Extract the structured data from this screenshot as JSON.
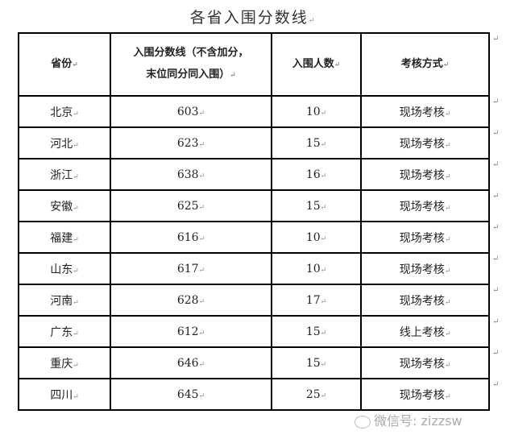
{
  "title": "各省入围分数线",
  "paragraph_mark": "↵",
  "headers": [
    "省份",
    "入围分数线（不含加分，",
    "末位同分同入围）",
    "入围人数",
    "考核方式"
  ],
  "rows": [
    {
      "province": "北京",
      "score": "603",
      "count": "10",
      "method": "现场考核"
    },
    {
      "province": "河北",
      "score": "623",
      "count": "15",
      "method": "现场考核"
    },
    {
      "province": "浙江",
      "score": "638",
      "count": "16",
      "method": "现场考核"
    },
    {
      "province": "安徽",
      "score": "625",
      "count": "15",
      "method": "现场考核"
    },
    {
      "province": "福建",
      "score": "616",
      "count": "10",
      "method": "现场考核"
    },
    {
      "province": "山东",
      "score": "617",
      "count": "10",
      "method": "现场考核"
    },
    {
      "province": "河南",
      "score": "628",
      "count": "17",
      "method": "现场考核"
    },
    {
      "province": "广东",
      "score": "612",
      "count": "15",
      "method": "线上考核"
    },
    {
      "province": "重庆",
      "score": "646",
      "count": "15",
      "method": "现场考核"
    },
    {
      "province": "四川",
      "score": "645",
      "count": "25",
      "method": "现场考核"
    }
  ],
  "watermark": "微信号: zizzsw"
}
